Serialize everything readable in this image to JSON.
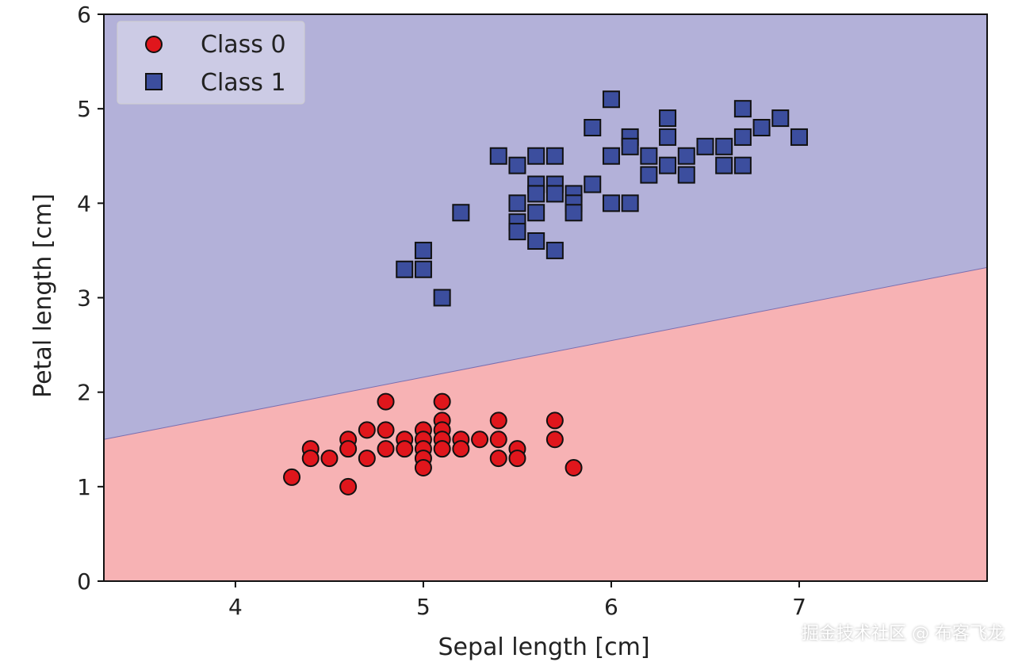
{
  "chart_data": {
    "type": "scatter",
    "xlabel": "Sepal length [cm]",
    "ylabel": "Petal length [cm]",
    "xlim": [
      3.3,
      8.0
    ],
    "ylim": [
      0,
      6
    ],
    "xticks": [
      4,
      5,
      6,
      7
    ],
    "yticks": [
      0,
      1,
      2,
      3,
      4,
      5,
      6
    ],
    "decision_boundary": {
      "x": [
        3.3,
        8.0
      ],
      "y": [
        1.5,
        3.32
      ]
    },
    "regions": {
      "class_0_color": "#f7b2b4",
      "class_1_color": "#b3b1d9"
    },
    "legend_position": "upper-left",
    "series": [
      {
        "name": "Class 0",
        "marker": "circle",
        "color": "#e0161c",
        "points": [
          [
            4.3,
            1.1
          ],
          [
            4.4,
            1.4
          ],
          [
            4.4,
            1.3
          ],
          [
            4.5,
            1.3
          ],
          [
            4.6,
            1.5
          ],
          [
            4.6,
            1.4
          ],
          [
            4.6,
            1.0
          ],
          [
            4.7,
            1.6
          ],
          [
            4.7,
            1.3
          ],
          [
            4.8,
            1.9
          ],
          [
            4.8,
            1.6
          ],
          [
            4.8,
            1.4
          ],
          [
            4.9,
            1.5
          ],
          [
            4.9,
            1.4
          ],
          [
            5.0,
            1.6
          ],
          [
            5.0,
            1.5
          ],
          [
            5.0,
            1.4
          ],
          [
            5.0,
            1.3
          ],
          [
            5.0,
            1.2
          ],
          [
            5.1,
            1.9
          ],
          [
            5.1,
            1.7
          ],
          [
            5.1,
            1.6
          ],
          [
            5.1,
            1.5
          ],
          [
            5.1,
            1.4
          ],
          [
            5.2,
            1.5
          ],
          [
            5.2,
            1.4
          ],
          [
            5.3,
            1.5
          ],
          [
            5.4,
            1.7
          ],
          [
            5.4,
            1.5
          ],
          [
            5.4,
            1.3
          ],
          [
            5.5,
            1.4
          ],
          [
            5.5,
            1.3
          ],
          [
            5.7,
            1.7
          ],
          [
            5.7,
            1.5
          ],
          [
            5.8,
            1.2
          ]
        ]
      },
      {
        "name": "Class 1",
        "marker": "square",
        "color": "#3c4e9e",
        "points": [
          [
            4.9,
            3.3
          ],
          [
            5.0,
            3.5
          ],
          [
            5.0,
            3.3
          ],
          [
            5.1,
            3.0
          ],
          [
            5.2,
            3.9
          ],
          [
            5.4,
            4.5
          ],
          [
            5.5,
            4.4
          ],
          [
            5.5,
            4.0
          ],
          [
            5.5,
            3.8
          ],
          [
            5.5,
            3.7
          ],
          [
            5.6,
            4.5
          ],
          [
            5.6,
            4.2
          ],
          [
            5.6,
            4.1
          ],
          [
            5.6,
            3.9
          ],
          [
            5.6,
            3.6
          ],
          [
            5.7,
            4.5
          ],
          [
            5.7,
            4.2
          ],
          [
            5.7,
            4.1
          ],
          [
            5.7,
            3.5
          ],
          [
            5.8,
            4.1
          ],
          [
            5.8,
            4.0
          ],
          [
            5.8,
            3.9
          ],
          [
            5.9,
            4.8
          ],
          [
            5.9,
            4.2
          ],
          [
            6.0,
            5.1
          ],
          [
            6.0,
            4.5
          ],
          [
            6.0,
            4.0
          ],
          [
            6.1,
            4.7
          ],
          [
            6.1,
            4.6
          ],
          [
            6.1,
            4.0
          ],
          [
            6.2,
            4.5
          ],
          [
            6.2,
            4.3
          ],
          [
            6.3,
            4.9
          ],
          [
            6.3,
            4.7
          ],
          [
            6.3,
            4.4
          ],
          [
            6.4,
            4.5
          ],
          [
            6.4,
            4.3
          ],
          [
            6.5,
            4.6
          ],
          [
            6.6,
            4.6
          ],
          [
            6.6,
            4.4
          ],
          [
            6.7,
            5.0
          ],
          [
            6.7,
            4.7
          ],
          [
            6.7,
            4.4
          ],
          [
            6.8,
            4.8
          ],
          [
            6.9,
            4.9
          ],
          [
            7.0,
            4.7
          ]
        ]
      }
    ]
  },
  "watermark": "掘金技术社区 @ 布客飞龙"
}
